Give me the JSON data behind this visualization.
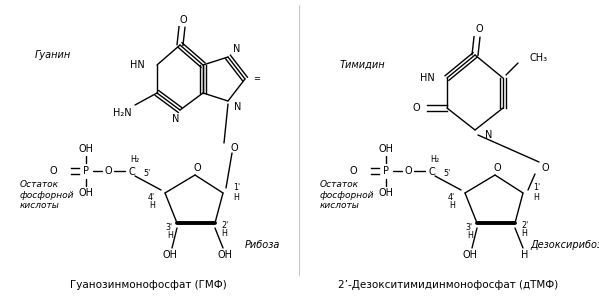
{
  "title_left": "Гуанозинмонофосфат (ГМФ)",
  "title_right": "2’-Дезокситимидинмонофосфат (дТМФ)",
  "bg_color": "#ffffff",
  "text_color": "#000000",
  "label_guanin": "Гуанин",
  "label_timidin": "Тимидин",
  "label_riboza": "Рибоза",
  "label_deoxyriboza": "Дезоксирибоза",
  "label_phosphate": "Остаток\nфосфорной\nкислоты",
  "figsize": [
    5.99,
    2.97
  ],
  "dpi": 100
}
